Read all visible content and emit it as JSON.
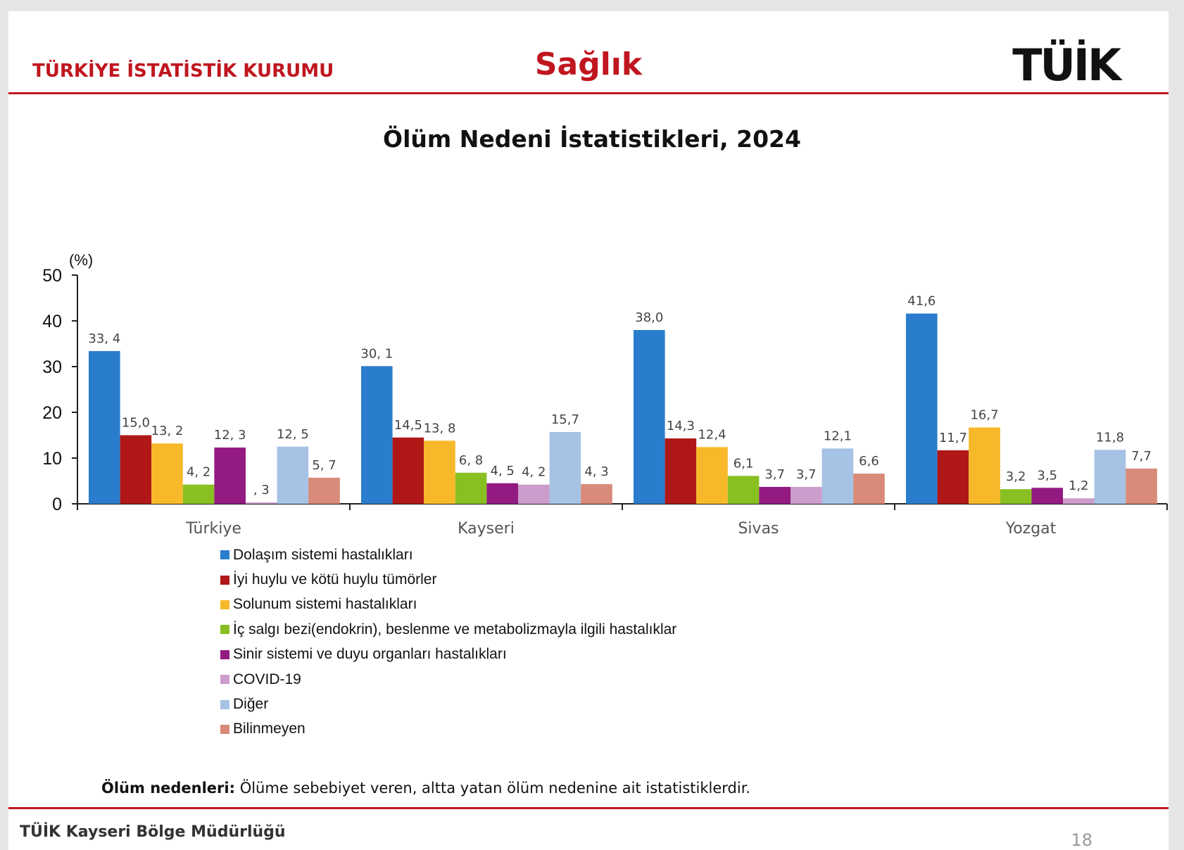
{
  "header": {
    "organization": "TÜRKİYE İSTATİSTİK KURUMU",
    "section": "Sağlık",
    "logo_text": "TÜİK"
  },
  "colors": {
    "accent": "#c0161f"
  },
  "chart_data": {
    "type": "bar",
    "title": "Ölüm Nedeni İstatistikleri, 2024",
    "ylabel": "(%)",
    "ylim": [
      0,
      50
    ],
    "yticks": [
      0,
      10,
      20,
      30,
      40,
      50
    ],
    "grid": false,
    "legend_position": "bottom",
    "categories": [
      "Türkiye",
      "Kayseri",
      "Sivas",
      "Yozgat"
    ],
    "series": [
      {
        "name": "Dolaşım sistemi hastalıkları",
        "color": "#2a7dcc",
        "values": [
          33.4,
          30.1,
          38.0,
          41.6
        ],
        "labels": [
          "33, 4",
          "30, 1",
          "38,0",
          "41,6"
        ]
      },
      {
        "name": "İyi huylu ve kötü huylu tümörler",
        "color": "#b01818",
        "values": [
          15.0,
          14.5,
          14.3,
          11.7
        ],
        "labels": [
          "15,0",
          "14,5",
          "14,3",
          "11,7"
        ]
      },
      {
        "name": "Solunum sistemi hastalıkları",
        "color": "#f7b92a",
        "values": [
          13.2,
          13.8,
          12.4,
          16.7
        ],
        "labels": [
          "13, 2",
          "13, 8",
          "12,4",
          "16,7"
        ]
      },
      {
        "name": "İç salgı bezi(endokrin), beslenme ve metabolizmayla ilgili hastalıklar",
        "color": "#88c022",
        "values": [
          4.2,
          6.8,
          6.1,
          3.2
        ],
        "labels": [
          "4, 2",
          "6, 8",
          "6,1",
          "3,2"
        ]
      },
      {
        "name": "Sinir sistemi ve duyu organları hastalıkları",
        "color": "#931a80",
        "values": [
          12.3,
          4.5,
          3.7,
          3.5
        ],
        "labels": [
          "12, 3",
          "4, 5",
          "3,7",
          "3,5"
        ]
      },
      {
        "name": "COVID-19",
        "color": "#cc9ccc",
        "values": [
          0.3,
          4.2,
          3.7,
          1.2
        ],
        "labels": [
          ", 3",
          "4, 2",
          "3,7",
          "1,2"
        ]
      },
      {
        "name": "Diğer",
        "color": "#a6c2e4",
        "values": [
          12.5,
          15.7,
          12.1,
          11.8
        ],
        "labels": [
          "12, 5",
          "15,7",
          "12,1",
          "11,8"
        ]
      },
      {
        "name": "Bilinmeyen",
        "color": "#d98a78",
        "values": [
          5.7,
          4.3,
          6.6,
          7.7
        ],
        "labels": [
          "5, 7",
          "4, 3",
          "6,6",
          "7,7"
        ]
      }
    ]
  },
  "note": {
    "label": "Ölüm nedenleri:",
    "text": " Ölüme sebebiyet veren, altta yatan ölüm nedenine ait istatistiklerdir."
  },
  "footer": {
    "office": "TÜİK Kayseri Bölge Müdürlüğü",
    "page": "18"
  }
}
